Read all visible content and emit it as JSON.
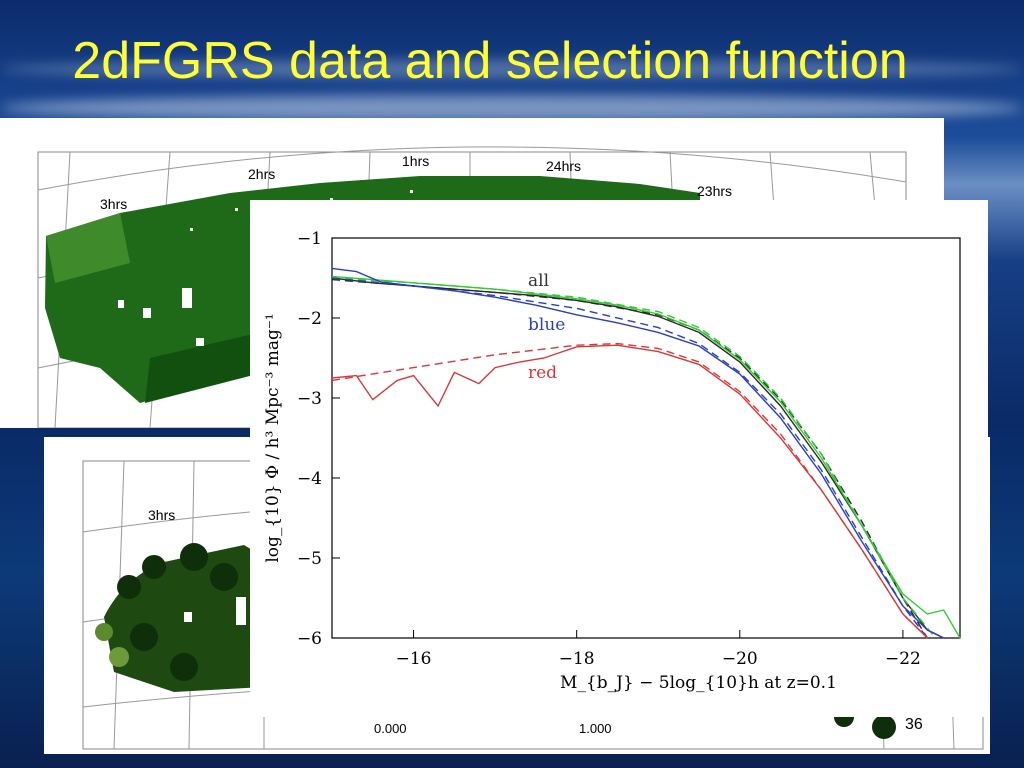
{
  "slide": {
    "title": "2dFGRS data and selection function",
    "page_number": "36"
  },
  "sky_map_top": {
    "ra_labels": [
      "3hrs",
      "2hrs",
      "1hrs",
      "24hrs",
      "23hrs"
    ]
  },
  "sky_map_bottom": {
    "ra_labels": [
      "3hrs"
    ],
    "x_ticks": [
      "0.000",
      "1.000"
    ]
  },
  "chart_data": {
    "type": "line",
    "xlabel": "M_{b_J} − 5log_{10}h at z=0.1",
    "ylabel": "log_{10} Φ / h³ Mpc⁻³ mag⁻¹",
    "xlim": [
      -15,
      -22.7
    ],
    "ylim": [
      -6,
      -1
    ],
    "x_ticks": [
      -16,
      -18,
      -20,
      -22
    ],
    "y_ticks": [
      -1,
      -2,
      -3,
      -4,
      -5,
      -6
    ],
    "annotations": [
      "all",
      "blue",
      "red"
    ],
    "series": [
      {
        "name": "all",
        "style": "solid",
        "color": "#2a2a2a",
        "x": [
          -15,
          -15.5,
          -16,
          -16.5,
          -17,
          -17.5,
          -18,
          -18.5,
          -19,
          -19.5,
          -20,
          -20.5,
          -21,
          -21.5,
          -22,
          -22.3,
          -22.5
        ],
        "y": [
          -1.5,
          -1.56,
          -1.6,
          -1.64,
          -1.68,
          -1.72,
          -1.78,
          -1.86,
          -1.98,
          -2.18,
          -2.55,
          -3.1,
          -3.8,
          -4.6,
          -5.5,
          -5.9,
          -6.0
        ]
      },
      {
        "name": "all-fit",
        "style": "dashed",
        "color": "#2a2a2a",
        "x": [
          -15,
          -16,
          -17,
          -18,
          -19,
          -19.5,
          -20,
          -20.5,
          -21,
          -21.5,
          -22,
          -22.3
        ],
        "y": [
          -1.52,
          -1.6,
          -1.68,
          -1.78,
          -1.96,
          -2.15,
          -2.5,
          -3.02,
          -3.7,
          -4.55,
          -5.5,
          -6.0
        ]
      },
      {
        "name": "green",
        "style": "solid",
        "color": "#33cc33",
        "x": [
          -15,
          -15.5,
          -16,
          -16.5,
          -17,
          -17.5,
          -18,
          -18.5,
          -19,
          -19.5,
          -20,
          -20.5,
          -21,
          -21.5,
          -22,
          -22.3,
          -22.5,
          -22.7
        ],
        "y": [
          -1.48,
          -1.52,
          -1.56,
          -1.6,
          -1.64,
          -1.7,
          -1.76,
          -1.84,
          -1.95,
          -2.15,
          -2.52,
          -3.05,
          -3.75,
          -4.6,
          -5.45,
          -5.7,
          -5.65,
          -6.0
        ]
      },
      {
        "name": "green-fit",
        "style": "dashed",
        "color": "#33cc33",
        "x": [
          -15,
          -16,
          -17,
          -18,
          -19,
          -19.5,
          -20,
          -20.5,
          -21,
          -21.5,
          -22,
          -22.4
        ],
        "y": [
          -1.5,
          -1.56,
          -1.64,
          -1.74,
          -1.92,
          -2.12,
          -2.48,
          -3.0,
          -3.7,
          -4.6,
          -5.5,
          -6.0
        ]
      },
      {
        "name": "blue",
        "style": "solid",
        "color": "#2a3fbf",
        "x": [
          -15,
          -15.3,
          -15.6,
          -16,
          -16.5,
          -17,
          -17.5,
          -18,
          -18.5,
          -19,
          -19.5,
          -20,
          -20.5,
          -21,
          -21.5,
          -22,
          -22.3,
          -22.5
        ],
        "y": [
          -1.38,
          -1.42,
          -1.55,
          -1.6,
          -1.66,
          -1.74,
          -1.84,
          -1.96,
          -2.06,
          -2.18,
          -2.35,
          -2.7,
          -3.25,
          -3.95,
          -4.8,
          -5.6,
          -5.9,
          -6.0
        ]
      },
      {
        "name": "blue-fit",
        "style": "dashed",
        "color": "#2a3fbf",
        "x": [
          -15,
          -16,
          -17,
          -18,
          -19,
          -19.5,
          -20,
          -20.5,
          -21,
          -21.5,
          -22,
          -22.3
        ],
        "y": [
          -1.5,
          -1.6,
          -1.72,
          -1.88,
          -2.12,
          -2.32,
          -2.68,
          -3.2,
          -3.9,
          -4.75,
          -5.6,
          -6.0
        ]
      },
      {
        "name": "red",
        "style": "solid",
        "color": "#d63a3a",
        "x": [
          -15,
          -15.3,
          -15.5,
          -15.8,
          -16,
          -16.3,
          -16.5,
          -16.8,
          -17,
          -17.3,
          -17.6,
          -18,
          -18.5,
          -19,
          -19.5,
          -20,
          -20.5,
          -21,
          -21.5,
          -22,
          -22.3
        ],
        "y": [
          -2.75,
          -2.72,
          -3.02,
          -2.78,
          -2.72,
          -3.1,
          -2.68,
          -2.82,
          -2.62,
          -2.55,
          -2.5,
          -2.36,
          -2.34,
          -2.42,
          -2.58,
          -2.95,
          -3.5,
          -4.15,
          -4.9,
          -5.7,
          -6.0
        ]
      },
      {
        "name": "red-fit",
        "style": "dashed",
        "color": "#d63a3a",
        "x": [
          -15,
          -16,
          -17,
          -18,
          -18.5,
          -19,
          -19.5,
          -20,
          -20.5,
          -21,
          -21.5,
          -22,
          -22.3
        ],
        "y": [
          -2.78,
          -2.62,
          -2.46,
          -2.34,
          -2.32,
          -2.38,
          -2.55,
          -2.92,
          -3.45,
          -4.15,
          -4.9,
          -5.7,
          -6.0
        ]
      }
    ],
    "colors": {
      "all": "#2a2a2a",
      "blue": "#2a3fbf",
      "red": "#d63a3a",
      "green": "#33cc33"
    }
  }
}
